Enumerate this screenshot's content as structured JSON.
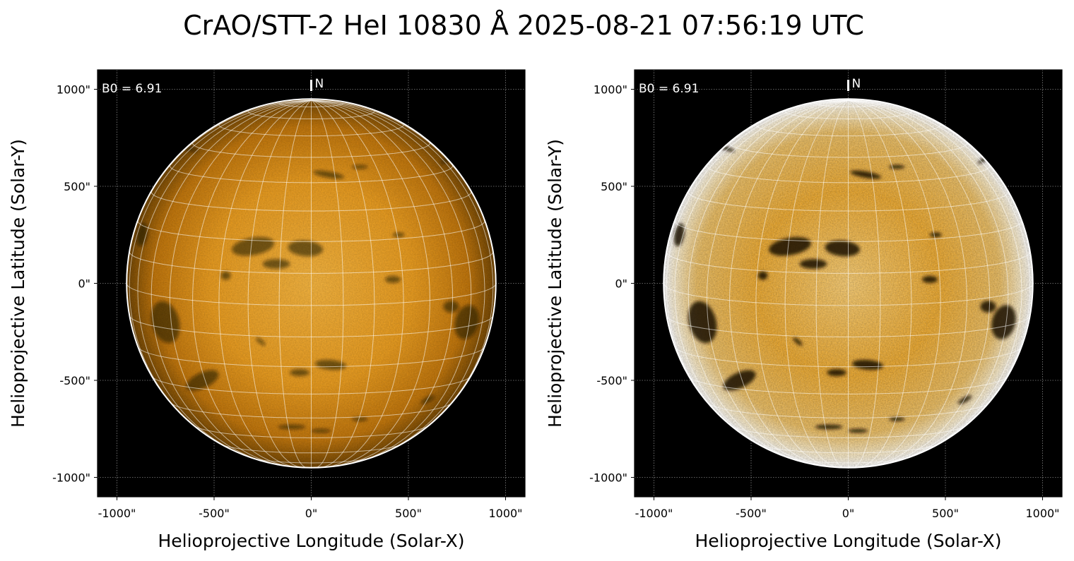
{
  "figure": {
    "title": "CrAO/STT-2 HeI 10830 Å 2025-08-21 07:56:19 UTC"
  },
  "axes": {
    "x_ticks": [
      {
        "value": -1000,
        "label": "-1000\""
      },
      {
        "value": -500,
        "label": "-500\""
      },
      {
        "value": 0,
        "label": "0\""
      },
      {
        "value": 500,
        "label": "500\""
      },
      {
        "value": 1000,
        "label": "1000\""
      }
    ],
    "y_ticks": [
      {
        "value": 1000,
        "label": "1000\""
      },
      {
        "value": 500,
        "label": "500\""
      },
      {
        "value": 0,
        "label": "0\""
      },
      {
        "value": -500,
        "label": "-500\""
      },
      {
        "value": -1000,
        "label": "-1000\""
      }
    ],
    "xlim": [
      -1100,
      1100
    ],
    "ylim": [
      -1100,
      1100
    ],
    "solar_radius_arcsec": 950
  },
  "panels": [
    {
      "xlabel": "Helioprojective Longitude (Solar-X)",
      "ylabel": "Helioprojective Latitude (Solar-Y)",
      "b0_text": "B0 = 6.91",
      "north_marker": "N",
      "contrast": "normal"
    },
    {
      "xlabel": "Helioprojective Longitude (Solar-X)",
      "ylabel": "Helioprojective Latitude (Solar-Y)",
      "b0_text": "B0 = 6.91",
      "north_marker": "N",
      "contrast": "enhanced"
    }
  ],
  "colors": {
    "disk_center": "#f7b233",
    "disk_mid": "#e08e0b",
    "disk_limb": "#7a4a00",
    "background": "#000000",
    "grid": "#ffffff"
  }
}
